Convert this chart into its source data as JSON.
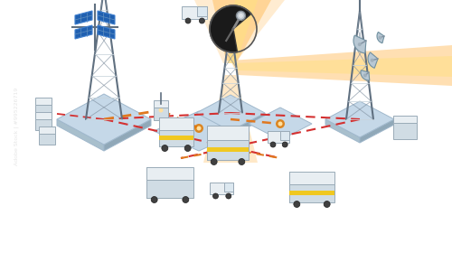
{
  "bg_color": "#ffffff",
  "tower_color": "#c8d4dc",
  "tower_dark": "#8090a0",
  "tower_stroke": "#607080",
  "solar_blue_dark": "#1a4a8a",
  "solar_blue_mid": "#2060b0",
  "solar_blue_light": "#4080d0",
  "dish_dark": "#1a1a1a",
  "dish_grey": "#9aabb8",
  "beam_orange1": "#ff9800",
  "beam_orange2": "#ffb74d",
  "beam_yellow": "#ffe082",
  "platform_fill": "#c5d8e8",
  "platform_edge": "#a0b8cc",
  "platform_side": "#a8bfcc",
  "dot_red": "#d43030",
  "dot_orange": "#e07820",
  "dot_amber": "#c86010",
  "vehicle_white": "#e8eef2",
  "vehicle_grey": "#d0dce4",
  "vehicle_dark": "#9aabb8",
  "vehicle_yellow": "#f0c820",
  "vehicle_blue_grey": "#b0c0cc",
  "wheel_dark": "#404040",
  "signal_orange": "#e07000",
  "signal_node": "#e07800"
}
